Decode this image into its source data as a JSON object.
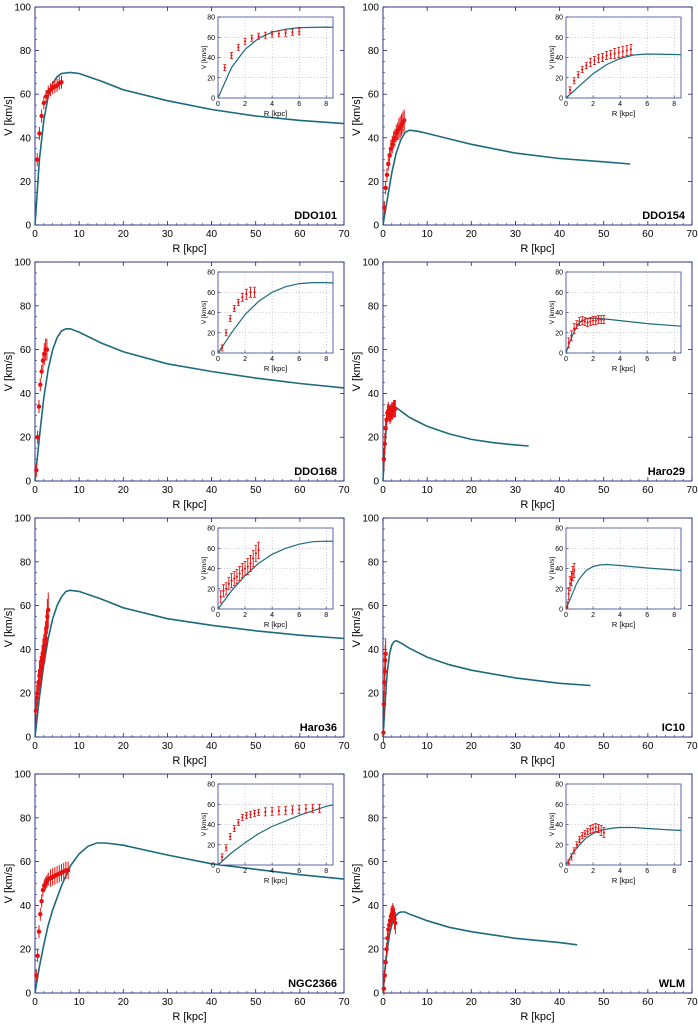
{
  "colors": {
    "model_curve": "#1c6b7d",
    "data_points": "#e8100e",
    "axis": "#1a237e",
    "grid": "#9aa0b4"
  },
  "chart_data": [
    {
      "type": "scatter",
      "title": "DDO101",
      "xlabel": "R [kpc]",
      "ylabel": "V [km/s]",
      "xlim": [
        0,
        70
      ],
      "ylim": [
        0,
        100
      ],
      "xticks": [
        0,
        10,
        20,
        30,
        40,
        50,
        60,
        70
      ],
      "yticks": [
        0,
        20,
        40,
        60,
        80,
        100
      ],
      "model": {
        "x": [
          0,
          1,
          2,
          3,
          4,
          5,
          6,
          8,
          10,
          15,
          20,
          30,
          40,
          50,
          60,
          70
        ],
        "y": [
          0,
          30,
          48,
          59,
          65,
          68,
          69.5,
          70,
          69.5,
          66,
          62,
          57,
          53,
          50,
          48,
          46.5
        ]
      },
      "data": {
        "x": [
          0.5,
          1,
          1.5,
          2,
          2.5,
          3,
          3.5,
          4,
          4.5,
          5,
          5.5,
          6
        ],
        "y": [
          30,
          42,
          50,
          56,
          59,
          61,
          62,
          63,
          63.5,
          64,
          65,
          65.5
        ],
        "err": [
          3,
          3,
          3,
          3,
          3,
          3,
          3,
          3,
          3,
          3,
          3,
          3
        ]
      },
      "inset": {
        "xlabel": "R [kpc]",
        "ylabel": "V [km/s]",
        "xlim": [
          0,
          8.5
        ],
        "ylim": [
          0,
          80
        ],
        "xticks": [
          0,
          2,
          4,
          6,
          8
        ],
        "yticks": [
          0,
          20,
          40,
          60,
          80
        ]
      }
    },
    {
      "type": "scatter",
      "title": "DDO154",
      "xlabel": "R [kpc]",
      "ylabel": "V [km/s]",
      "xlim": [
        0,
        70
      ],
      "ylim": [
        0,
        100
      ],
      "xticks": [
        0,
        10,
        20,
        30,
        40,
        50,
        60,
        70
      ],
      "yticks": [
        0,
        20,
        40,
        60,
        80,
        100
      ],
      "model": {
        "x": [
          0,
          0.5,
          1,
          2,
          3,
          4,
          5,
          6,
          8,
          10,
          15,
          20,
          30,
          40,
          50,
          56
        ],
        "y": [
          0,
          6,
          12,
          24,
          33,
          39,
          42.5,
          43.5,
          43,
          42,
          39.5,
          37,
          33,
          30.5,
          29,
          28
        ]
      },
      "data": {
        "x": [
          0.3,
          0.6,
          0.9,
          1.2,
          1.5,
          1.8,
          2.1,
          2.4,
          2.7,
          3,
          3.3,
          3.6,
          3.9,
          4.2,
          4.5,
          4.8
        ],
        "y": [
          8,
          17,
          23,
          28,
          32,
          35,
          37,
          39,
          40,
          42,
          43,
          44,
          45,
          46,
          47,
          48
        ],
        "err": [
          3,
          3,
          3,
          3,
          3,
          4,
          4,
          4,
          4,
          4,
          4,
          5,
          5,
          5,
          5,
          5
        ]
      },
      "inset": {
        "xlabel": "R [kpc]",
        "ylabel": "V [km/s]",
        "xlim": [
          0,
          8.5
        ],
        "ylim": [
          0,
          80
        ],
        "xticks": [
          0,
          2,
          4,
          6,
          8
        ],
        "yticks": [
          0,
          20,
          40,
          60,
          80
        ]
      }
    },
    {
      "type": "scatter",
      "title": "DDO168",
      "xlabel": "R [kpc]",
      "ylabel": "V [km/s]",
      "xlim": [
        0,
        70
      ],
      "ylim": [
        0,
        100
      ],
      "xticks": [
        0,
        10,
        20,
        30,
        40,
        50,
        60,
        70
      ],
      "yticks": [
        0,
        20,
        40,
        60,
        80,
        100
      ],
      "model": {
        "x": [
          0,
          0.5,
          1,
          2,
          3,
          4,
          5,
          6,
          7,
          8,
          10,
          15,
          20,
          30,
          40,
          50,
          60,
          70
        ],
        "y": [
          0,
          10,
          20,
          38,
          51,
          60,
          65.5,
          68.5,
          69.5,
          69.5,
          68,
          63,
          59,
          53.5,
          50,
          47,
          44.5,
          42.5
        ]
      },
      "data": {
        "x": [
          0.3,
          0.6,
          0.9,
          1.2,
          1.5,
          1.8,
          2.1,
          2.4,
          2.7
        ],
        "y": [
          5,
          20,
          34,
          44,
          50,
          55,
          58,
          60,
          60
        ],
        "err": [
          3,
          3,
          3,
          3,
          3,
          4,
          5,
          5,
          5
        ]
      },
      "inset": {
        "xlabel": "R [kpc]",
        "ylabel": "V [km/s]",
        "xlim": [
          0,
          8.5
        ],
        "ylim": [
          0,
          80
        ],
        "xticks": [
          0,
          2,
          4,
          6,
          8
        ],
        "yticks": [
          0,
          20,
          40,
          60,
          80
        ]
      }
    },
    {
      "type": "scatter",
      "title": "Haro29",
      "xlabel": "R [kpc]",
      "ylabel": "V [km/s]",
      "xlim": [
        0,
        70
      ],
      "ylim": [
        0,
        100
      ],
      "xticks": [
        0,
        10,
        20,
        30,
        40,
        50,
        60,
        70
      ],
      "yticks": [
        0,
        20,
        40,
        60,
        80,
        100
      ],
      "model": {
        "x": [
          0,
          0.25,
          0.5,
          0.75,
          1,
          1.5,
          2,
          3,
          4,
          5,
          6,
          8,
          10,
          15,
          20,
          25,
          30,
          33
        ],
        "y": [
          0,
          10,
          18,
          25,
          30,
          34,
          34.5,
          33.5,
          32,
          30.5,
          29,
          27,
          25,
          21.5,
          19,
          17.5,
          16.5,
          16
        ]
      },
      "data": {
        "x": [
          0.2,
          0.4,
          0.6,
          0.8,
          1,
          1.2,
          1.4,
          1.6,
          1.8,
          2,
          2.2,
          2.4,
          2.6,
          2.8
        ],
        "y": [
          10,
          17,
          24,
          28,
          31,
          32,
          31,
          30,
          31,
          32,
          32,
          33,
          33,
          33
        ],
        "err": [
          5,
          5,
          5,
          4,
          4,
          4,
          4,
          4,
          4,
          4,
          4,
          4,
          4,
          4
        ]
      },
      "inset": {
        "xlabel": "R [kpc]",
        "ylabel": "V [km/s]",
        "xlim": [
          0,
          8.5
        ],
        "ylim": [
          0,
          80
        ],
        "xticks": [
          0,
          2,
          4,
          6,
          8
        ],
        "yticks": [
          0,
          20,
          40,
          60,
          80
        ]
      }
    },
    {
      "type": "scatter",
      "title": "Haro36",
      "xlabel": "R [kpc]",
      "ylabel": "V [km/s]",
      "xlim": [
        0,
        70
      ],
      "ylim": [
        0,
        100
      ],
      "xticks": [
        0,
        10,
        20,
        30,
        40,
        50,
        60,
        70
      ],
      "yticks": [
        0,
        20,
        40,
        60,
        80,
        100
      ],
      "model": {
        "x": [
          0,
          0.5,
          1,
          2,
          3,
          4,
          5,
          6,
          7,
          8,
          10,
          15,
          20,
          30,
          40,
          50,
          60,
          70
        ],
        "y": [
          0,
          9,
          18,
          33,
          45,
          54,
          60,
          64,
          66.5,
          67,
          66.5,
          63,
          59,
          54,
          51,
          48.5,
          46.5,
          45
        ]
      },
      "data": {
        "x": [
          0.2,
          0.4,
          0.6,
          0.8,
          1,
          1.2,
          1.4,
          1.6,
          1.8,
          2,
          2.2,
          2.4,
          2.6,
          2.8,
          3
        ],
        "y": [
          12,
          18,
          20,
          25,
          28,
          30,
          32,
          35,
          38,
          40,
          42,
          45,
          50,
          55,
          58
        ],
        "err": [
          6,
          6,
          6,
          6,
          7,
          7,
          7,
          7,
          7,
          7,
          8,
          8,
          8,
          8,
          8
        ]
      },
      "inset": {
        "xlabel": "R [kpc]",
        "ylabel": "V [km/s]",
        "xlim": [
          0,
          8.5
        ],
        "ylim": [
          0,
          80
        ],
        "xticks": [
          0,
          2,
          4,
          6,
          8
        ],
        "yticks": [
          0,
          20,
          40,
          60,
          80
        ]
      }
    },
    {
      "type": "scatter",
      "title": "IC10",
      "xlabel": "R [kpc]",
      "ylabel": "V [km/s]",
      "xlim": [
        0,
        70
      ],
      "ylim": [
        0,
        100
      ],
      "xticks": [
        0,
        10,
        20,
        30,
        40,
        50,
        60,
        70
      ],
      "yticks": [
        0,
        20,
        40,
        60,
        80,
        100
      ],
      "model": {
        "x": [
          0,
          0.25,
          0.5,
          0.75,
          1,
          1.5,
          2,
          2.5,
          3,
          4,
          6,
          8,
          10,
          15,
          20,
          30,
          40,
          47
        ],
        "y": [
          0,
          8,
          16,
          24,
          30,
          38,
          42,
          43.5,
          44,
          43,
          40.5,
          38.5,
          36.5,
          33,
          30.5,
          27,
          24.5,
          23.5
        ]
      },
      "data": {
        "x": [
          0.1,
          0.2,
          0.3,
          0.4,
          0.5,
          0.6
        ],
        "y": [
          2,
          15,
          25,
          30,
          35,
          38
        ],
        "err": [
          5,
          6,
          7,
          7,
          7,
          7
        ]
      },
      "inset": {
        "xlabel": "R [kpc]",
        "ylabel": "V [km/s]",
        "xlim": [
          0,
          8.5
        ],
        "ylim": [
          0,
          80
        ],
        "xticks": [
          0,
          2,
          4,
          6,
          8
        ],
        "yticks": [
          0,
          20,
          40,
          60,
          80
        ]
      }
    },
    {
      "type": "scatter",
      "title": "NGC2366",
      "xlabel": "R [kpc]",
      "ylabel": "V [km/s]",
      "xlim": [
        0,
        70
      ],
      "ylim": [
        0,
        100
      ],
      "xticks": [
        0,
        10,
        20,
        30,
        40,
        50,
        60,
        70
      ],
      "yticks": [
        0,
        20,
        40,
        60,
        80,
        100
      ],
      "model": {
        "x": [
          0,
          1,
          2,
          3,
          4,
          6,
          8,
          10,
          12,
          14,
          16,
          20,
          30,
          40,
          50,
          60,
          70
        ],
        "y": [
          0,
          12,
          22,
          31,
          38,
          49,
          58,
          63.5,
          67,
          68.5,
          68.5,
          67.5,
          63,
          59,
          56.5,
          54,
          52
        ]
      },
      "data": {
        "x": [
          0.3,
          0.6,
          0.9,
          1.2,
          1.5,
          1.8,
          2.1,
          2.4,
          2.7,
          3,
          3.5,
          4,
          4.5,
          5,
          5.5,
          6,
          6.5,
          7,
          7.5
        ],
        "y": [
          8,
          17,
          28,
          36,
          42,
          47,
          49,
          50,
          51,
          52,
          52.5,
          53,
          53.5,
          54,
          54.5,
          55,
          55.5,
          56,
          56
        ],
        "err": [
          3,
          3,
          3,
          3,
          3,
          3,
          3,
          3,
          3,
          3,
          4,
          4,
          4,
          4,
          4,
          4,
          4,
          4,
          4
        ]
      },
      "inset": {
        "xlabel": "R [kpc]",
        "ylabel": "V [km/s]",
        "xlim": [
          0,
          8.5
        ],
        "ylim": [
          0,
          80
        ],
        "xticks": [
          0,
          2,
          4,
          6,
          8
        ],
        "yticks": [
          0,
          20,
          40,
          60,
          80
        ]
      }
    },
    {
      "type": "scatter",
      "title": "WLM",
      "xlabel": "R [kpc]",
      "ylabel": "V [km/s]",
      "xlim": [
        0,
        70
      ],
      "ylim": [
        0,
        100
      ],
      "xticks": [
        0,
        10,
        20,
        30,
        40,
        50,
        60,
        70
      ],
      "yticks": [
        0,
        20,
        40,
        60,
        80,
        100
      ],
      "model": {
        "x": [
          0,
          0.5,
          1,
          1.5,
          2,
          2.5,
          3,
          3.5,
          4,
          5,
          6,
          8,
          10,
          15,
          20,
          30,
          40,
          44
        ],
        "y": [
          0,
          12,
          20,
          27,
          31,
          34,
          35.5,
          36.5,
          37,
          37,
          36,
          34.5,
          33,
          30,
          28,
          25,
          23,
          22
        ]
      },
      "data": {
        "x": [
          0.2,
          0.4,
          0.6,
          0.8,
          1,
          1.2,
          1.4,
          1.6,
          1.8,
          2,
          2.2,
          2.4,
          2.6,
          2.8
        ],
        "y": [
          2,
          8,
          14,
          20,
          25,
          29,
          31,
          33,
          35,
          36,
          37,
          36,
          34,
          32
        ],
        "err": [
          3,
          3,
          3,
          3,
          3,
          3,
          3,
          3,
          4,
          4,
          4,
          4,
          5,
          5
        ]
      },
      "inset": {
        "xlabel": "R [kpc]",
        "ylabel": "V [km/s]",
        "xlim": [
          0,
          8.5
        ],
        "ylim": [
          0,
          80
        ],
        "xticks": [
          0,
          2,
          4,
          6,
          8
        ],
        "yticks": [
          0,
          20,
          40,
          60,
          80
        ]
      }
    }
  ]
}
